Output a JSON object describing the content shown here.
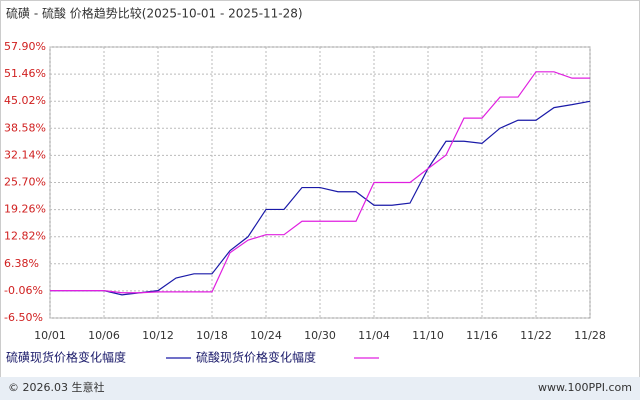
{
  "chart_data": {
    "type": "line",
    "title": "硫磺 - 硫酸 价格趋势比较(2025-10-01 - 2025-11-28)",
    "categories": [
      "10/01",
      null,
      null,
      "10/06",
      null,
      null,
      "10/12",
      null,
      null,
      "10/18",
      null,
      null,
      "10/24",
      null,
      null,
      "10/30",
      null,
      null,
      "11/04",
      null,
      null,
      "11/10",
      null,
      null,
      "11/16",
      null,
      null,
      "11/22",
      null,
      null,
      "11/28"
    ],
    "series": [
      {
        "name": "硫磺现货价格变化幅度",
        "color": "#1a1aa8",
        "values": [
          0,
          0,
          0,
          0,
          -1,
          -0.5,
          0,
          3,
          4,
          4,
          9.5,
          12.8,
          19.3,
          19.3,
          24.5,
          24.5,
          23.5,
          23.5,
          20.3,
          20.3,
          20.8,
          29,
          35.5,
          35.5,
          35,
          38.6,
          40.5,
          40.5,
          43.5,
          44.2,
          45
        ]
      },
      {
        "name": "硫酸现货价格变化幅度",
        "color": "#e020e0",
        "values": [
          0,
          0,
          0,
          0,
          -0.5,
          -0.5,
          -0.3,
          -0.3,
          -0.3,
          -0.3,
          9,
          12,
          13.3,
          13.3,
          16.5,
          16.5,
          16.5,
          16.5,
          25.7,
          25.7,
          25.7,
          29,
          32.2,
          41,
          41,
          46,
          46,
          52,
          52,
          50.5,
          50.5
        ]
      }
    ],
    "ylim": [
      -6.5,
      57.9
    ],
    "yticks": [
      {
        "value": 57.9,
        "label": "57.90%"
      },
      {
        "value": 51.46,
        "label": "51.46%"
      },
      {
        "value": 45.02,
        "label": "45.02%"
      },
      {
        "value": 38.58,
        "label": "38.58%"
      },
      {
        "value": 32.14,
        "label": "32.14%"
      },
      {
        "value": 25.7,
        "label": "25.70%"
      },
      {
        "value": 19.26,
        "label": "19.26%"
      },
      {
        "value": 12.82,
        "label": "12.82%"
      },
      {
        "value": 6.38,
        "label": "6.38%"
      },
      {
        "value": -0.06,
        "label": "-0.06%"
      },
      {
        "value": -6.5,
        "label": "-6.50%"
      }
    ],
    "grid": true,
    "footer_left": "© 2026.03 生意社",
    "footer_right": "www.100PPI.com"
  }
}
